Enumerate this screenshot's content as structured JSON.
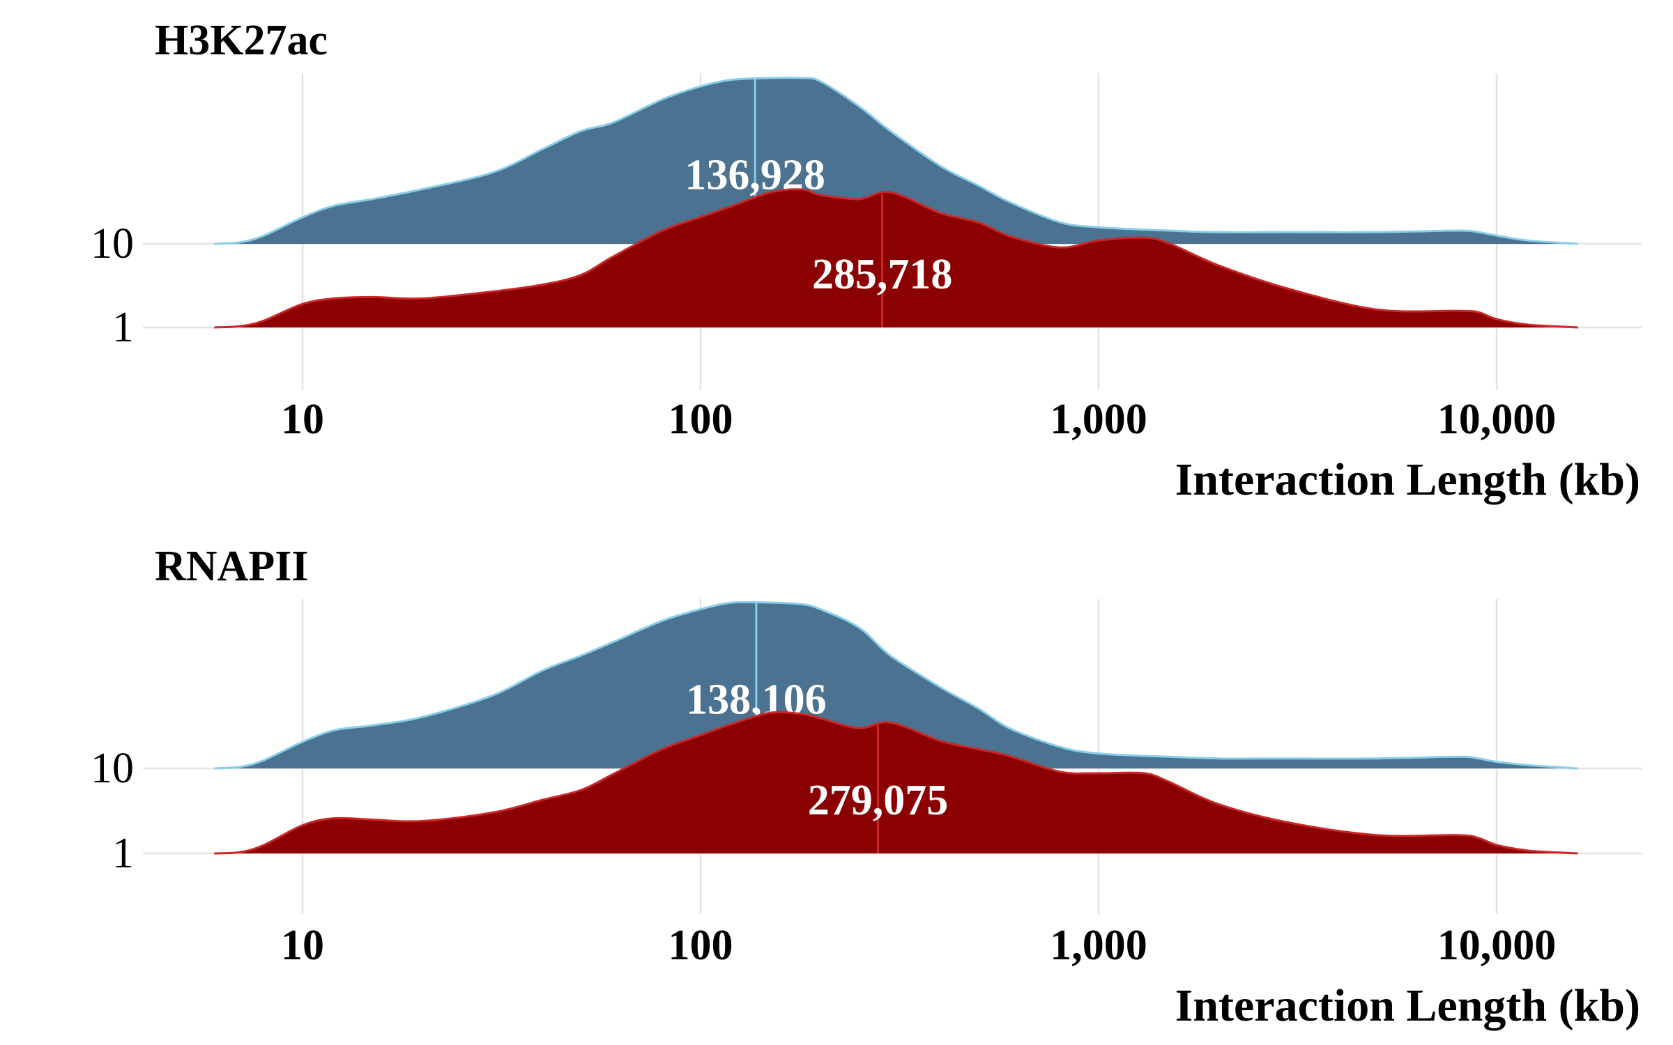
{
  "chart_data": [
    {
      "type": "area",
      "title": "H3K27ac",
      "xlabel": "Interaction Length (kb)",
      "x_scale": "log",
      "xlim": [
        6,
        16000
      ],
      "x_ticks": [
        "10",
        "100",
        "1,000",
        "10,000"
      ],
      "x_tick_values": [
        10,
        100,
        1000,
        10000
      ],
      "y_ticks": [
        "10",
        "1"
      ],
      "grid": "vertical",
      "series": [
        {
          "name": "10",
          "color": "#4b7290",
          "stroke": "#87ceeb",
          "median_label": "136,928",
          "median_kb": 137,
          "x": [
            6,
            7,
            8,
            10,
            12,
            15,
            20,
            30,
            40,
            50,
            60,
            80,
            100,
            120,
            150,
            180,
            200,
            250,
            300,
            400,
            500,
            600,
            800,
            1000,
            1500,
            2000,
            3000,
            5000,
            8000,
            9000,
            10000,
            12000,
            16000
          ],
          "density": [
            0,
            0.01,
            0.05,
            0.16,
            0.23,
            0.27,
            0.33,
            0.43,
            0.57,
            0.68,
            0.73,
            0.87,
            0.95,
            0.99,
            1.0,
            1.0,
            0.98,
            0.83,
            0.68,
            0.47,
            0.35,
            0.25,
            0.13,
            0.1,
            0.08,
            0.07,
            0.07,
            0.07,
            0.08,
            0.07,
            0.05,
            0.02,
            0
          ]
        },
        {
          "name": "1",
          "color": "#8b0000",
          "stroke": "#cd2626",
          "median_label": "285,718",
          "median_kb": 286,
          "x": [
            6,
            7,
            8,
            10,
            12,
            15,
            20,
            30,
            40,
            50,
            60,
            80,
            100,
            120,
            150,
            180,
            200,
            250,
            300,
            400,
            500,
            600,
            800,
            1000,
            1300,
            1500,
            2000,
            3000,
            5000,
            8000,
            9000,
            10000,
            12000,
            16000
          ],
          "density": [
            0,
            0.01,
            0.05,
            0.17,
            0.21,
            0.22,
            0.21,
            0.26,
            0.31,
            0.38,
            0.51,
            0.7,
            0.8,
            0.88,
            0.98,
            1.0,
            0.96,
            0.93,
            0.98,
            0.83,
            0.76,
            0.66,
            0.58,
            0.63,
            0.65,
            0.61,
            0.45,
            0.28,
            0.13,
            0.12,
            0.11,
            0.06,
            0.02,
            0
          ]
        }
      ]
    },
    {
      "type": "area",
      "title": "RNAPII",
      "xlabel": "Interaction Length (kb)",
      "x_scale": "log",
      "xlim": [
        6,
        16000
      ],
      "x_ticks": [
        "10",
        "100",
        "1,000",
        "10,000"
      ],
      "x_tick_values": [
        10,
        100,
        1000,
        10000
      ],
      "y_ticks": [
        "10",
        "1"
      ],
      "grid": "vertical",
      "series": [
        {
          "name": "10",
          "color": "#4b7290",
          "stroke": "#87ceeb",
          "median_label": "138,106",
          "median_kb": 138,
          "x": [
            6,
            7,
            8,
            10,
            12,
            15,
            20,
            30,
            40,
            50,
            60,
            80,
            100,
            120,
            150,
            180,
            200,
            250,
            300,
            400,
            500,
            600,
            800,
            1000,
            1500,
            2000,
            3000,
            5000,
            8000,
            9000,
            10000,
            12000,
            16000
          ],
          "density": [
            0,
            0.01,
            0.05,
            0.16,
            0.23,
            0.26,
            0.31,
            0.44,
            0.59,
            0.68,
            0.76,
            0.89,
            0.96,
            1.0,
            1.0,
            0.99,
            0.96,
            0.85,
            0.68,
            0.49,
            0.36,
            0.24,
            0.13,
            0.09,
            0.07,
            0.06,
            0.06,
            0.06,
            0.07,
            0.06,
            0.04,
            0.02,
            0
          ]
        },
        {
          "name": "1",
          "color": "#8b0000",
          "stroke": "#cd2626",
          "median_label": "279,075",
          "median_kb": 279,
          "x": [
            6,
            7,
            8,
            10,
            12,
            15,
            20,
            30,
            40,
            50,
            60,
            80,
            100,
            120,
            150,
            180,
            200,
            250,
            300,
            400,
            500,
            600,
            800,
            1000,
            1300,
            1500,
            2000,
            3000,
            5000,
            8000,
            9000,
            10000,
            12000,
            16000
          ],
          "density": [
            0,
            0.01,
            0.06,
            0.2,
            0.25,
            0.24,
            0.23,
            0.29,
            0.38,
            0.45,
            0.56,
            0.74,
            0.84,
            0.92,
            1.0,
            0.99,
            0.96,
            0.89,
            0.93,
            0.8,
            0.74,
            0.69,
            0.58,
            0.57,
            0.57,
            0.51,
            0.35,
            0.22,
            0.13,
            0.13,
            0.11,
            0.06,
            0.02,
            0
          ]
        }
      ]
    }
  ]
}
